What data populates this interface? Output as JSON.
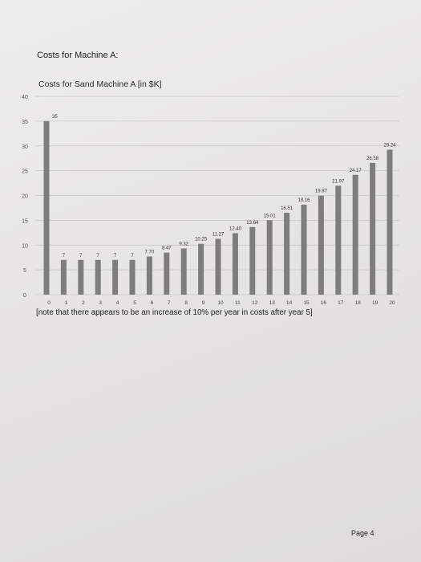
{
  "heading": "Costs for Machine A:",
  "note": "[note that there appears to be an increase of 10% per year in costs after year 5]",
  "page": "Page 4",
  "chart_data": {
    "type": "bar",
    "title": "Costs for Sand Machine A [in $K]",
    "categories": [
      "0",
      "1",
      "2",
      "3",
      "4",
      "5",
      "6",
      "7",
      "8",
      "9",
      "10",
      "11",
      "12",
      "13",
      "14",
      "15",
      "16",
      "17",
      "18",
      "19",
      "20"
    ],
    "values": [
      35,
      7,
      7,
      7,
      7,
      7,
      7.7,
      8.47,
      9.32,
      10.25,
      11.27,
      12.4,
      13.64,
      15.01,
      16.51,
      18.16,
      19.97,
      21.97,
      24.17,
      26.58,
      29.24
    ],
    "value_labels": [
      "35",
      "7",
      "7",
      "7",
      "7",
      "7",
      "7.70",
      "8.47",
      "9.32",
      "10.25",
      "11.27",
      "12.40",
      "13.64",
      "15.01",
      "16.51",
      "18.16",
      "19.97",
      "21.97",
      "24.17",
      "26.58",
      "29.24"
    ],
    "y_ticks": [
      "0",
      "5",
      "10",
      "15",
      "20",
      "25",
      "30",
      "35",
      "40"
    ],
    "ylim": [
      0,
      40
    ],
    "grid": true,
    "bar_color": "#7d7d7d"
  }
}
